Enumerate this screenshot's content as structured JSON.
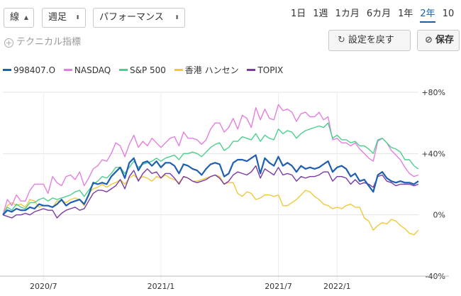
{
  "toolbar": {
    "chart_type": "線",
    "interval": "週足",
    "mode": "パフォーマンス",
    "periods": [
      "1日",
      "1週",
      "1カ月",
      "6カ月",
      "1年",
      "2年",
      "10"
    ],
    "active_period": "2年",
    "technical_label": "テクニカル指標",
    "reset_label": "設定を戻す",
    "save_label": "保存"
  },
  "chart_data": {
    "type": "line",
    "title": "",
    "xlabel": "",
    "ylabel": "",
    "x_tick_labels": [
      "2020/7",
      "2021/1",
      "2021/7",
      "2022/1"
    ],
    "y_tick_labels": [
      "+80%",
      "+40%",
      "0%",
      "-40%"
    ],
    "ylim": [
      -40,
      80
    ],
    "grid": true,
    "legend": "top-left",
    "series": [
      {
        "name": "998407.O",
        "color": "#1f5fb0",
        "values": [
          0,
          3,
          2,
          4,
          3,
          3,
          5,
          4,
          7,
          6,
          6,
          5,
          7,
          10,
          6,
          8,
          9,
          10,
          7,
          13,
          21,
          20,
          21,
          20,
          25,
          28,
          31,
          24,
          34,
          37,
          29,
          34,
          35,
          32,
          35,
          31,
          34,
          34,
          32,
          27,
          33,
          32,
          30,
          29,
          26,
          30,
          33,
          34,
          33,
          25,
          27,
          34,
          36,
          36,
          35,
          37,
          39,
          27,
          37,
          34,
          32,
          38,
          32,
          34,
          32,
          28,
          32,
          30,
          31,
          30,
          31,
          33,
          35,
          28,
          31,
          32,
          30,
          25,
          27,
          22,
          23,
          19,
          15,
          26,
          28,
          24,
          22,
          21,
          22,
          21,
          21,
          20,
          22
        ]
      },
      {
        "name": "NASDAQ",
        "color": "#e47fe0",
        "values": [
          0,
          10,
          6,
          13,
          9,
          9,
          16,
          20,
          20,
          20,
          14,
          25,
          21,
          19,
          25,
          26,
          23,
          28,
          19,
          24,
          30,
          32,
          36,
          35,
          40,
          47,
          45,
          38,
          46,
          52,
          44,
          48,
          45,
          50,
          47,
          44,
          47,
          50,
          51,
          45,
          54,
          50,
          50,
          49,
          46,
          49,
          56,
          60,
          60,
          54,
          57,
          63,
          56,
          65,
          63,
          57,
          70,
          62,
          69,
          63,
          62,
          72,
          68,
          69,
          67,
          61,
          66,
          67,
          64,
          64,
          67,
          62,
          64,
          49,
          50,
          47,
          47,
          45,
          47,
          43,
          40,
          37,
          35,
          48,
          50,
          47,
          42,
          39,
          36,
          31,
          27,
          25,
          26
        ]
      },
      {
        "name": "S&P 500",
        "color": "#4ccf8e",
        "values": [
          0,
          5,
          3,
          7,
          5,
          4,
          8,
          8,
          10,
          11,
          9,
          11,
          10,
          11,
          12,
          13,
          15,
          16,
          12,
          16,
          20,
          22,
          25,
          24,
          27,
          31,
          31,
          27,
          31,
          35,
          31,
          33,
          34,
          35,
          37,
          35,
          37,
          38,
          39,
          36,
          40,
          40,
          41,
          40,
          38,
          41,
          44,
          46,
          47,
          42,
          44,
          48,
          48,
          51,
          50,
          49,
          53,
          48,
          52,
          50,
          49,
          56,
          53,
          55,
          54,
          50,
          53,
          55,
          56,
          57,
          58,
          57,
          60,
          50,
          52,
          49,
          49,
          47,
          48,
          45,
          45,
          43,
          40,
          49,
          50,
          47,
          44,
          43,
          41,
          36,
          36,
          32,
          30
        ]
      },
      {
        "name": "香港 ハンセン",
        "color": "#f0c93a",
        "values": [
          0,
          6,
          8,
          6,
          7,
          5,
          10,
          9,
          5,
          6,
          6,
          5,
          9,
          9,
          8,
          10,
          11,
          10,
          6,
          14,
          17,
          18,
          20,
          18,
          20,
          21,
          23,
          20,
          24,
          26,
          23,
          25,
          24,
          22,
          25,
          24,
          26,
          24,
          23,
          21,
          25,
          24,
          22,
          22,
          23,
          24,
          25,
          26,
          25,
          20,
          21,
          21,
          14,
          12,
          15,
          14,
          10,
          11,
          13,
          13,
          12,
          13,
          6,
          6,
          8,
          10,
          13,
          16,
          15,
          12,
          10,
          7,
          6,
          4,
          5,
          4,
          6,
          7,
          5,
          5,
          -2,
          -4,
          -10,
          -7,
          -5,
          -6,
          -3,
          -4,
          -7,
          -9,
          -12,
          -13,
          -10
        ]
      },
      {
        "name": "TOPIX",
        "color": "#7b3aa8",
        "values": [
          0,
          -1,
          -2,
          0,
          0,
          1,
          0,
          2,
          3,
          4,
          3,
          3,
          -2,
          1,
          3,
          4,
          5,
          3,
          4,
          9,
          14,
          16,
          16,
          15,
          17,
          19,
          23,
          17,
          25,
          29,
          22,
          27,
          30,
          27,
          28,
          24,
          27,
          27,
          24,
          20,
          25,
          24,
          22,
          21,
          22,
          23,
          25,
          26,
          24,
          20,
          22,
          26,
          28,
          27,
          26,
          28,
          32,
          24,
          30,
          28,
          26,
          31,
          26,
          27,
          26,
          22,
          25,
          24,
          25,
          25,
          26,
          28,
          28,
          22,
          25,
          25,
          24,
          20,
          23,
          20,
          21,
          20,
          18,
          25,
          26,
          22,
          21,
          19,
          20,
          20,
          20,
          19,
          20
        ]
      }
    ]
  }
}
